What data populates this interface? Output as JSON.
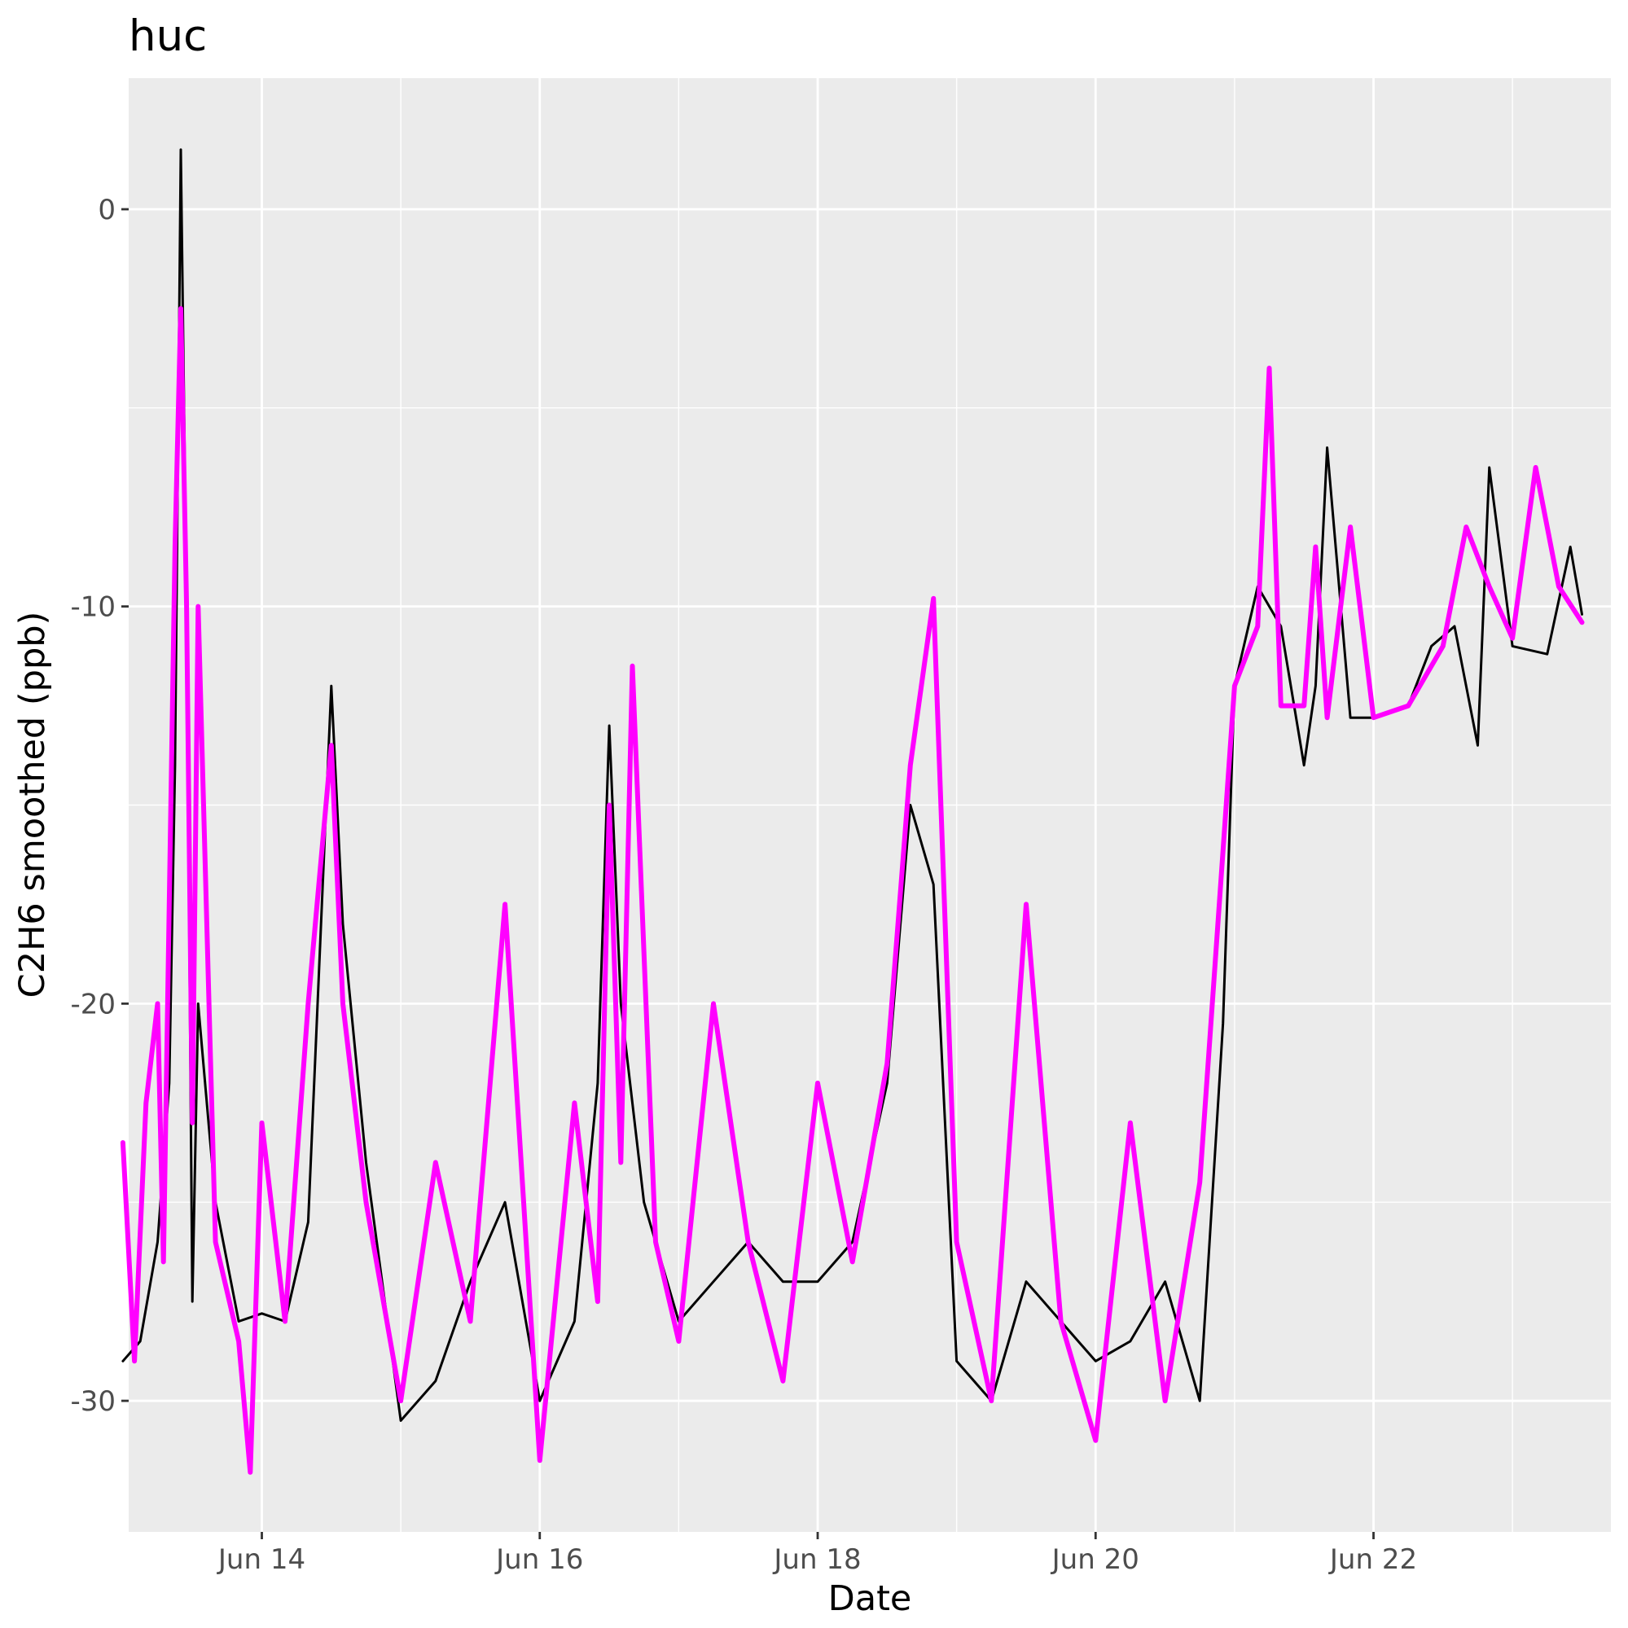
{
  "chart_data": {
    "type": "line",
    "title": "huc",
    "xlabel": "Date",
    "ylabel": "C2H6 smoothed (ppb)",
    "x_ticks": [
      "Jun 14",
      "Jun 16",
      "Jun 18",
      "Jun 20",
      "Jun 22"
    ],
    "y_ticks": [
      "0",
      "-10",
      "-20",
      "-30"
    ],
    "xlim": [
      "Jun 13 01:00",
      "Jun 23 17:00"
    ],
    "ylim": [
      -33.3,
      3.3
    ],
    "grid": true,
    "legend": "none",
    "background": "#ebebeb",
    "series": [
      {
        "color": "#000000",
        "points": [
          [
            "Jun 13 00:00",
            -29.0
          ],
          [
            "Jun 13 03:00",
            -28.5
          ],
          [
            "Jun 13 06:00",
            -26.0
          ],
          [
            "Jun 13 08:00",
            -22.0
          ],
          [
            "Jun 13 09:00",
            -14.0
          ],
          [
            "Jun 13 10:00",
            1.5
          ],
          [
            "Jun 13 11:00",
            -10.0
          ],
          [
            "Jun 13 12:00",
            -27.5
          ],
          [
            "Jun 13 13:00",
            -20.0
          ],
          [
            "Jun 13 16:00",
            -25.0
          ],
          [
            "Jun 13 20:00",
            -28.0
          ],
          [
            "Jun 14 00:00",
            -27.8
          ],
          [
            "Jun 14 04:00",
            -28.0
          ],
          [
            "Jun 14 08:00",
            -25.5
          ],
          [
            "Jun 14 12:00",
            -12.0
          ],
          [
            "Jun 14 14:00",
            -18.0
          ],
          [
            "Jun 14 18:00",
            -24.0
          ],
          [
            "Jun 15 00:00",
            -30.5
          ],
          [
            "Jun 15 06:00",
            -29.5
          ],
          [
            "Jun 15 12:00",
            -27.0
          ],
          [
            "Jun 15 18:00",
            -25.0
          ],
          [
            "Jun 16 00:00",
            -30.0
          ],
          [
            "Jun 16 06:00",
            -28.0
          ],
          [
            "Jun 16 10:00",
            -22.0
          ],
          [
            "Jun 16 12:00",
            -13.0
          ],
          [
            "Jun 16 14:00",
            -20.0
          ],
          [
            "Jun 16 18:00",
            -25.0
          ],
          [
            "Jun 17 00:00",
            -28.0
          ],
          [
            "Jun 17 06:00",
            -27.0
          ],
          [
            "Jun 17 12:00",
            -26.0
          ],
          [
            "Jun 17 18:00",
            -27.0
          ],
          [
            "Jun 18 00:00",
            -27.0
          ],
          [
            "Jun 18 06:00",
            -26.0
          ],
          [
            "Jun 18 12:00",
            -22.0
          ],
          [
            "Jun 18 16:00",
            -15.0
          ],
          [
            "Jun 18 20:00",
            -17.0
          ],
          [
            "Jun 19 00:00",
            -29.0
          ],
          [
            "Jun 19 06:00",
            -30.0
          ],
          [
            "Jun 19 12:00",
            -27.0
          ],
          [
            "Jun 19 18:00",
            -28.0
          ],
          [
            "Jun 20 00:00",
            -29.0
          ],
          [
            "Jun 20 06:00",
            -28.5
          ],
          [
            "Jun 20 12:00",
            -27.0
          ],
          [
            "Jun 20 18:00",
            -30.0
          ],
          [
            "Jun 20 22:00",
            -20.5
          ],
          [
            "Jun 21 00:00",
            -12.0
          ],
          [
            "Jun 21 04:00",
            -9.5
          ],
          [
            "Jun 21 08:00",
            -10.5
          ],
          [
            "Jun 21 12:00",
            -14.0
          ],
          [
            "Jun 21 14:00",
            -12.0
          ],
          [
            "Jun 21 16:00",
            -6.0
          ],
          [
            "Jun 21 20:00",
            -12.8
          ],
          [
            "Jun 22 00:00",
            -12.8
          ],
          [
            "Jun 22 06:00",
            -12.5
          ],
          [
            "Jun 22 10:00",
            -11.0
          ],
          [
            "Jun 22 14:00",
            -10.5
          ],
          [
            "Jun 22 18:00",
            -13.5
          ],
          [
            "Jun 22 20:00",
            -6.5
          ],
          [
            "Jun 23 00:00",
            -11.0
          ],
          [
            "Jun 23 06:00",
            -11.2
          ],
          [
            "Jun 23 10:00",
            -8.5
          ],
          [
            "Jun 23 12:00",
            -10.2
          ]
        ]
      },
      {
        "color": "#ff00ff",
        "points": [
          [
            "Jun 13 00:00",
            -23.5
          ],
          [
            "Jun 13 02:00",
            -29.0
          ],
          [
            "Jun 13 04:00",
            -22.5
          ],
          [
            "Jun 13 06:00",
            -20.0
          ],
          [
            "Jun 13 07:00",
            -26.5
          ],
          [
            "Jun 13 09:00",
            -8.5
          ],
          [
            "Jun 13 10:00",
            -2.5
          ],
          [
            "Jun 13 11:00",
            -10.0
          ],
          [
            "Jun 13 12:00",
            -23.0
          ],
          [
            "Jun 13 13:00",
            -10.0
          ],
          [
            "Jun 13 16:00",
            -26.0
          ],
          [
            "Jun 13 20:00",
            -28.5
          ],
          [
            "Jun 13 22:00",
            -31.8
          ],
          [
            "Jun 14 00:00",
            -23.0
          ],
          [
            "Jun 14 04:00",
            -28.0
          ],
          [
            "Jun 14 08:00",
            -20.0
          ],
          [
            "Jun 14 12:00",
            -13.5
          ],
          [
            "Jun 14 14:00",
            -20.0
          ],
          [
            "Jun 14 18:00",
            -25.0
          ],
          [
            "Jun 15 00:00",
            -30.0
          ],
          [
            "Jun 15 06:00",
            -24.0
          ],
          [
            "Jun 15 12:00",
            -28.0
          ],
          [
            "Jun 15 18:00",
            -17.5
          ],
          [
            "Jun 16 00:00",
            -31.5
          ],
          [
            "Jun 16 06:00",
            -22.5
          ],
          [
            "Jun 16 10:00",
            -27.5
          ],
          [
            "Jun 16 12:00",
            -15.0
          ],
          [
            "Jun 16 14:00",
            -24.0
          ],
          [
            "Jun 16 16:00",
            -11.5
          ],
          [
            "Jun 16 20:00",
            -26.0
          ],
          [
            "Jun 17 00:00",
            -28.5
          ],
          [
            "Jun 17 06:00",
            -20.0
          ],
          [
            "Jun 17 12:00",
            -26.0
          ],
          [
            "Jun 17 18:00",
            -29.5
          ],
          [
            "Jun 18 00:00",
            -22.0
          ],
          [
            "Jun 18 06:00",
            -26.5
          ],
          [
            "Jun 18 12:00",
            -21.5
          ],
          [
            "Jun 18 16:00",
            -14.0
          ],
          [
            "Jun 18 20:00",
            -9.8
          ],
          [
            "Jun 19 00:00",
            -26.0
          ],
          [
            "Jun 19 06:00",
            -30.0
          ],
          [
            "Jun 19 12:00",
            -17.5
          ],
          [
            "Jun 19 18:00",
            -28.0
          ],
          [
            "Jun 20 00:00",
            -31.0
          ],
          [
            "Jun 20 06:00",
            -23.0
          ],
          [
            "Jun 20 12:00",
            -30.0
          ],
          [
            "Jun 20 18:00",
            -24.5
          ],
          [
            "Jun 21 00:00",
            -12.0
          ],
          [
            "Jun 21 04:00",
            -10.5
          ],
          [
            "Jun 21 06:00",
            -4.0
          ],
          [
            "Jun 21 08:00",
            -12.5
          ],
          [
            "Jun 21 12:00",
            -12.5
          ],
          [
            "Jun 21 14:00",
            -8.5
          ],
          [
            "Jun 21 16:00",
            -12.8
          ],
          [
            "Jun 21 20:00",
            -8.0
          ],
          [
            "Jun 22 00:00",
            -12.8
          ],
          [
            "Jun 22 06:00",
            -12.5
          ],
          [
            "Jun 22 12:00",
            -11.0
          ],
          [
            "Jun 22 16:00",
            -8.0
          ],
          [
            "Jun 22 20:00",
            -9.5
          ],
          [
            "Jun 23 00:00",
            -10.8
          ],
          [
            "Jun 23 04:00",
            -6.5
          ],
          [
            "Jun 23 08:00",
            -9.5
          ],
          [
            "Jun 23 12:00",
            -10.4
          ]
        ]
      }
    ]
  }
}
